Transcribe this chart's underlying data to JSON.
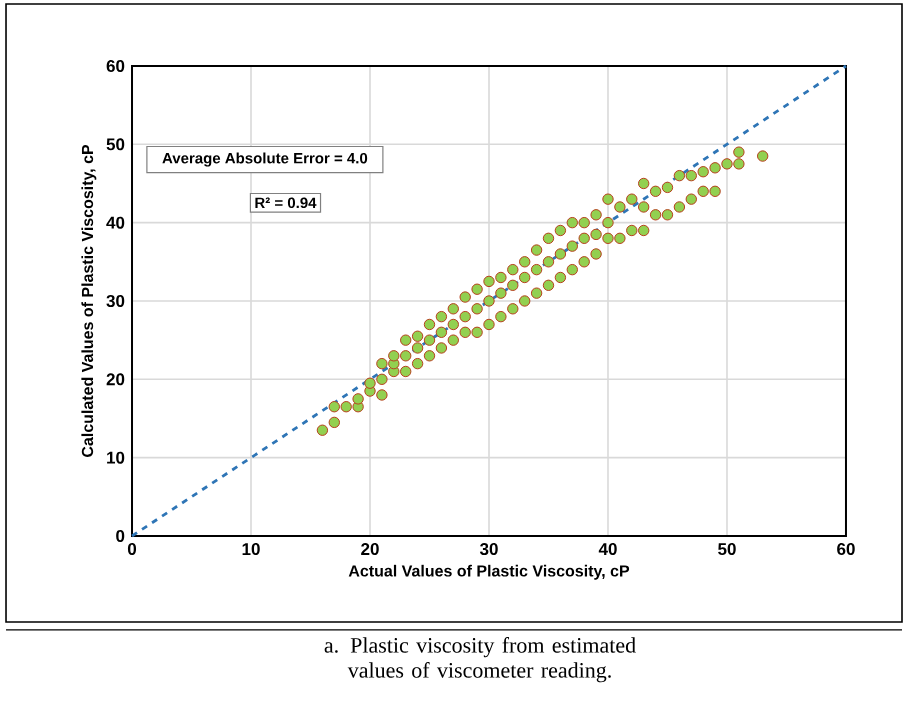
{
  "chart_data": {
    "type": "scatter",
    "xlabel": "Actual Values of Plastic Viscosity, cP",
    "ylabel": "Calculated Values of Plastic Viscosity, cP",
    "xlim": [
      0,
      60
    ],
    "ylim": [
      0,
      60
    ],
    "xticks": [
      0,
      10,
      20,
      30,
      40,
      50,
      60
    ],
    "yticks": [
      0,
      10,
      20,
      30,
      40,
      50,
      60
    ],
    "grid": true,
    "annotations": [
      "Average Absolute Error = 4.0",
      "R² = 0.94",
      "a. Plastic viscosity from estimated values of viscometer reading."
    ],
    "series": [
      {
        "color": "#92d050",
        "marker": "circle",
        "x": [
          16,
          17,
          17,
          18,
          19,
          19,
          20,
          20,
          21,
          21,
          21,
          22,
          22,
          22,
          23,
          23,
          23,
          24,
          24,
          24,
          25,
          25,
          25,
          26,
          26,
          26,
          27,
          27,
          27,
          28,
          28,
          28,
          29,
          29,
          29,
          30,
          30,
          30,
          31,
          31,
          31,
          32,
          32,
          32,
          33,
          33,
          33,
          34,
          34,
          34,
          35,
          35,
          35,
          36,
          36,
          36,
          37,
          37,
          37,
          38,
          38,
          38,
          39,
          39,
          39,
          40,
          40,
          40,
          41,
          41,
          42,
          42,
          43,
          43,
          43,
          44,
          44,
          45,
          45,
          46,
          46,
          47,
          47,
          48,
          48,
          49,
          49,
          50,
          51,
          51,
          53
        ],
        "values": [
          13.5,
          14.5,
          16.5,
          16.5,
          16.5,
          17.5,
          18.5,
          19.5,
          18,
          20,
          22,
          21,
          22,
          23,
          21,
          23,
          25,
          22,
          24,
          25.5,
          23,
          25,
          27,
          24,
          26,
          28,
          25,
          27,
          29,
          26,
          28,
          30.5,
          26,
          29,
          31.5,
          27,
          30,
          32.5,
          28,
          31,
          33,
          29,
          32,
          34,
          30,
          33,
          35,
          31,
          34,
          36.5,
          32,
          35,
          38,
          33,
          36,
          39,
          34,
          37,
          40,
          35,
          38,
          40,
          36,
          38.5,
          41,
          38,
          40,
          43,
          38,
          42,
          39,
          43,
          39,
          42,
          45,
          41,
          44,
          41,
          44.5,
          42,
          46,
          43,
          46,
          44,
          46.5,
          44,
          47,
          47.5,
          47.5,
          49,
          48.5
        ]
      },
      {
        "type": "line",
        "color": "#2e75b6",
        "x": [
          0,
          60
        ],
        "values": [
          0,
          60
        ],
        "line_style": "dashed",
        "marker": "none"
      }
    ]
  }
}
